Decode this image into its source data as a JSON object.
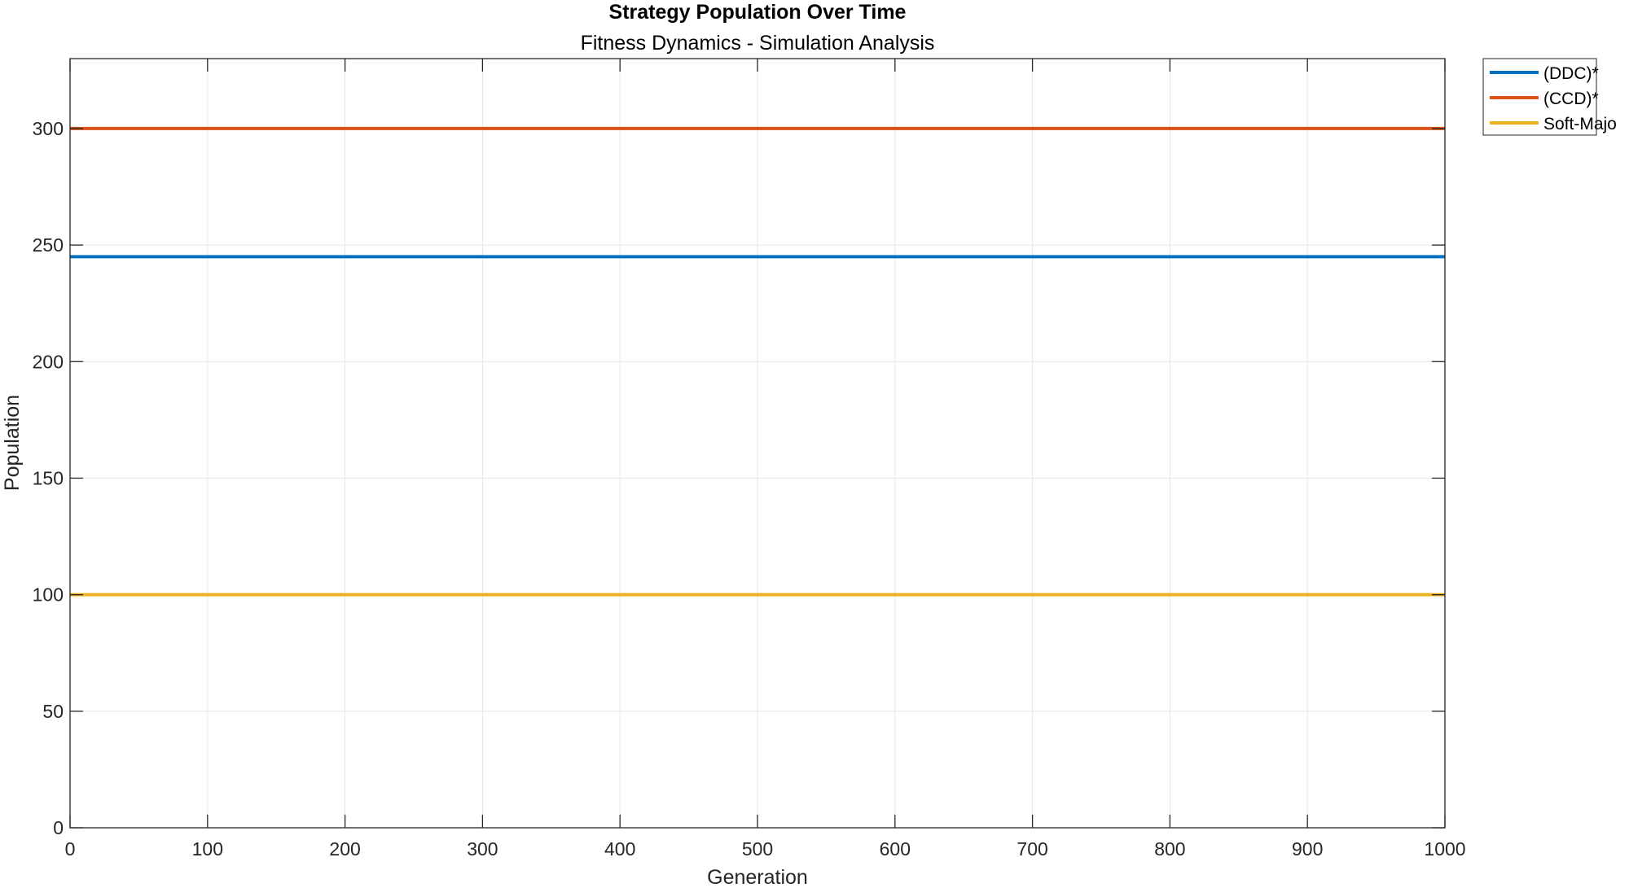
{
  "chart_data": {
    "type": "line",
    "title": "Strategy Population Over Time",
    "subtitle": "Fitness Dynamics - Simulation Analysis",
    "xlabel": "Generation",
    "ylabel": "Population",
    "xlim": [
      0,
      1000
    ],
    "ylim": [
      0,
      330
    ],
    "xticks": [
      0,
      100,
      200,
      300,
      400,
      500,
      600,
      700,
      800,
      900,
      1000
    ],
    "yticks": [
      0,
      50,
      100,
      150,
      200,
      250,
      300
    ],
    "grid": true,
    "legend_position": "outside-top-right",
    "series": [
      {
        "name": "(DDC)*",
        "color": "#0072BD",
        "x": [
          0,
          1000
        ],
        "values": [
          245,
          245
        ]
      },
      {
        "name": "(CCD)*",
        "color": "#D95319",
        "x": [
          0,
          1000
        ],
        "values": [
          300,
          300
        ]
      },
      {
        "name": "Soft-Majo",
        "color": "#EDB120",
        "x": [
          0,
          1000
        ],
        "values": [
          100,
          100
        ]
      }
    ]
  }
}
